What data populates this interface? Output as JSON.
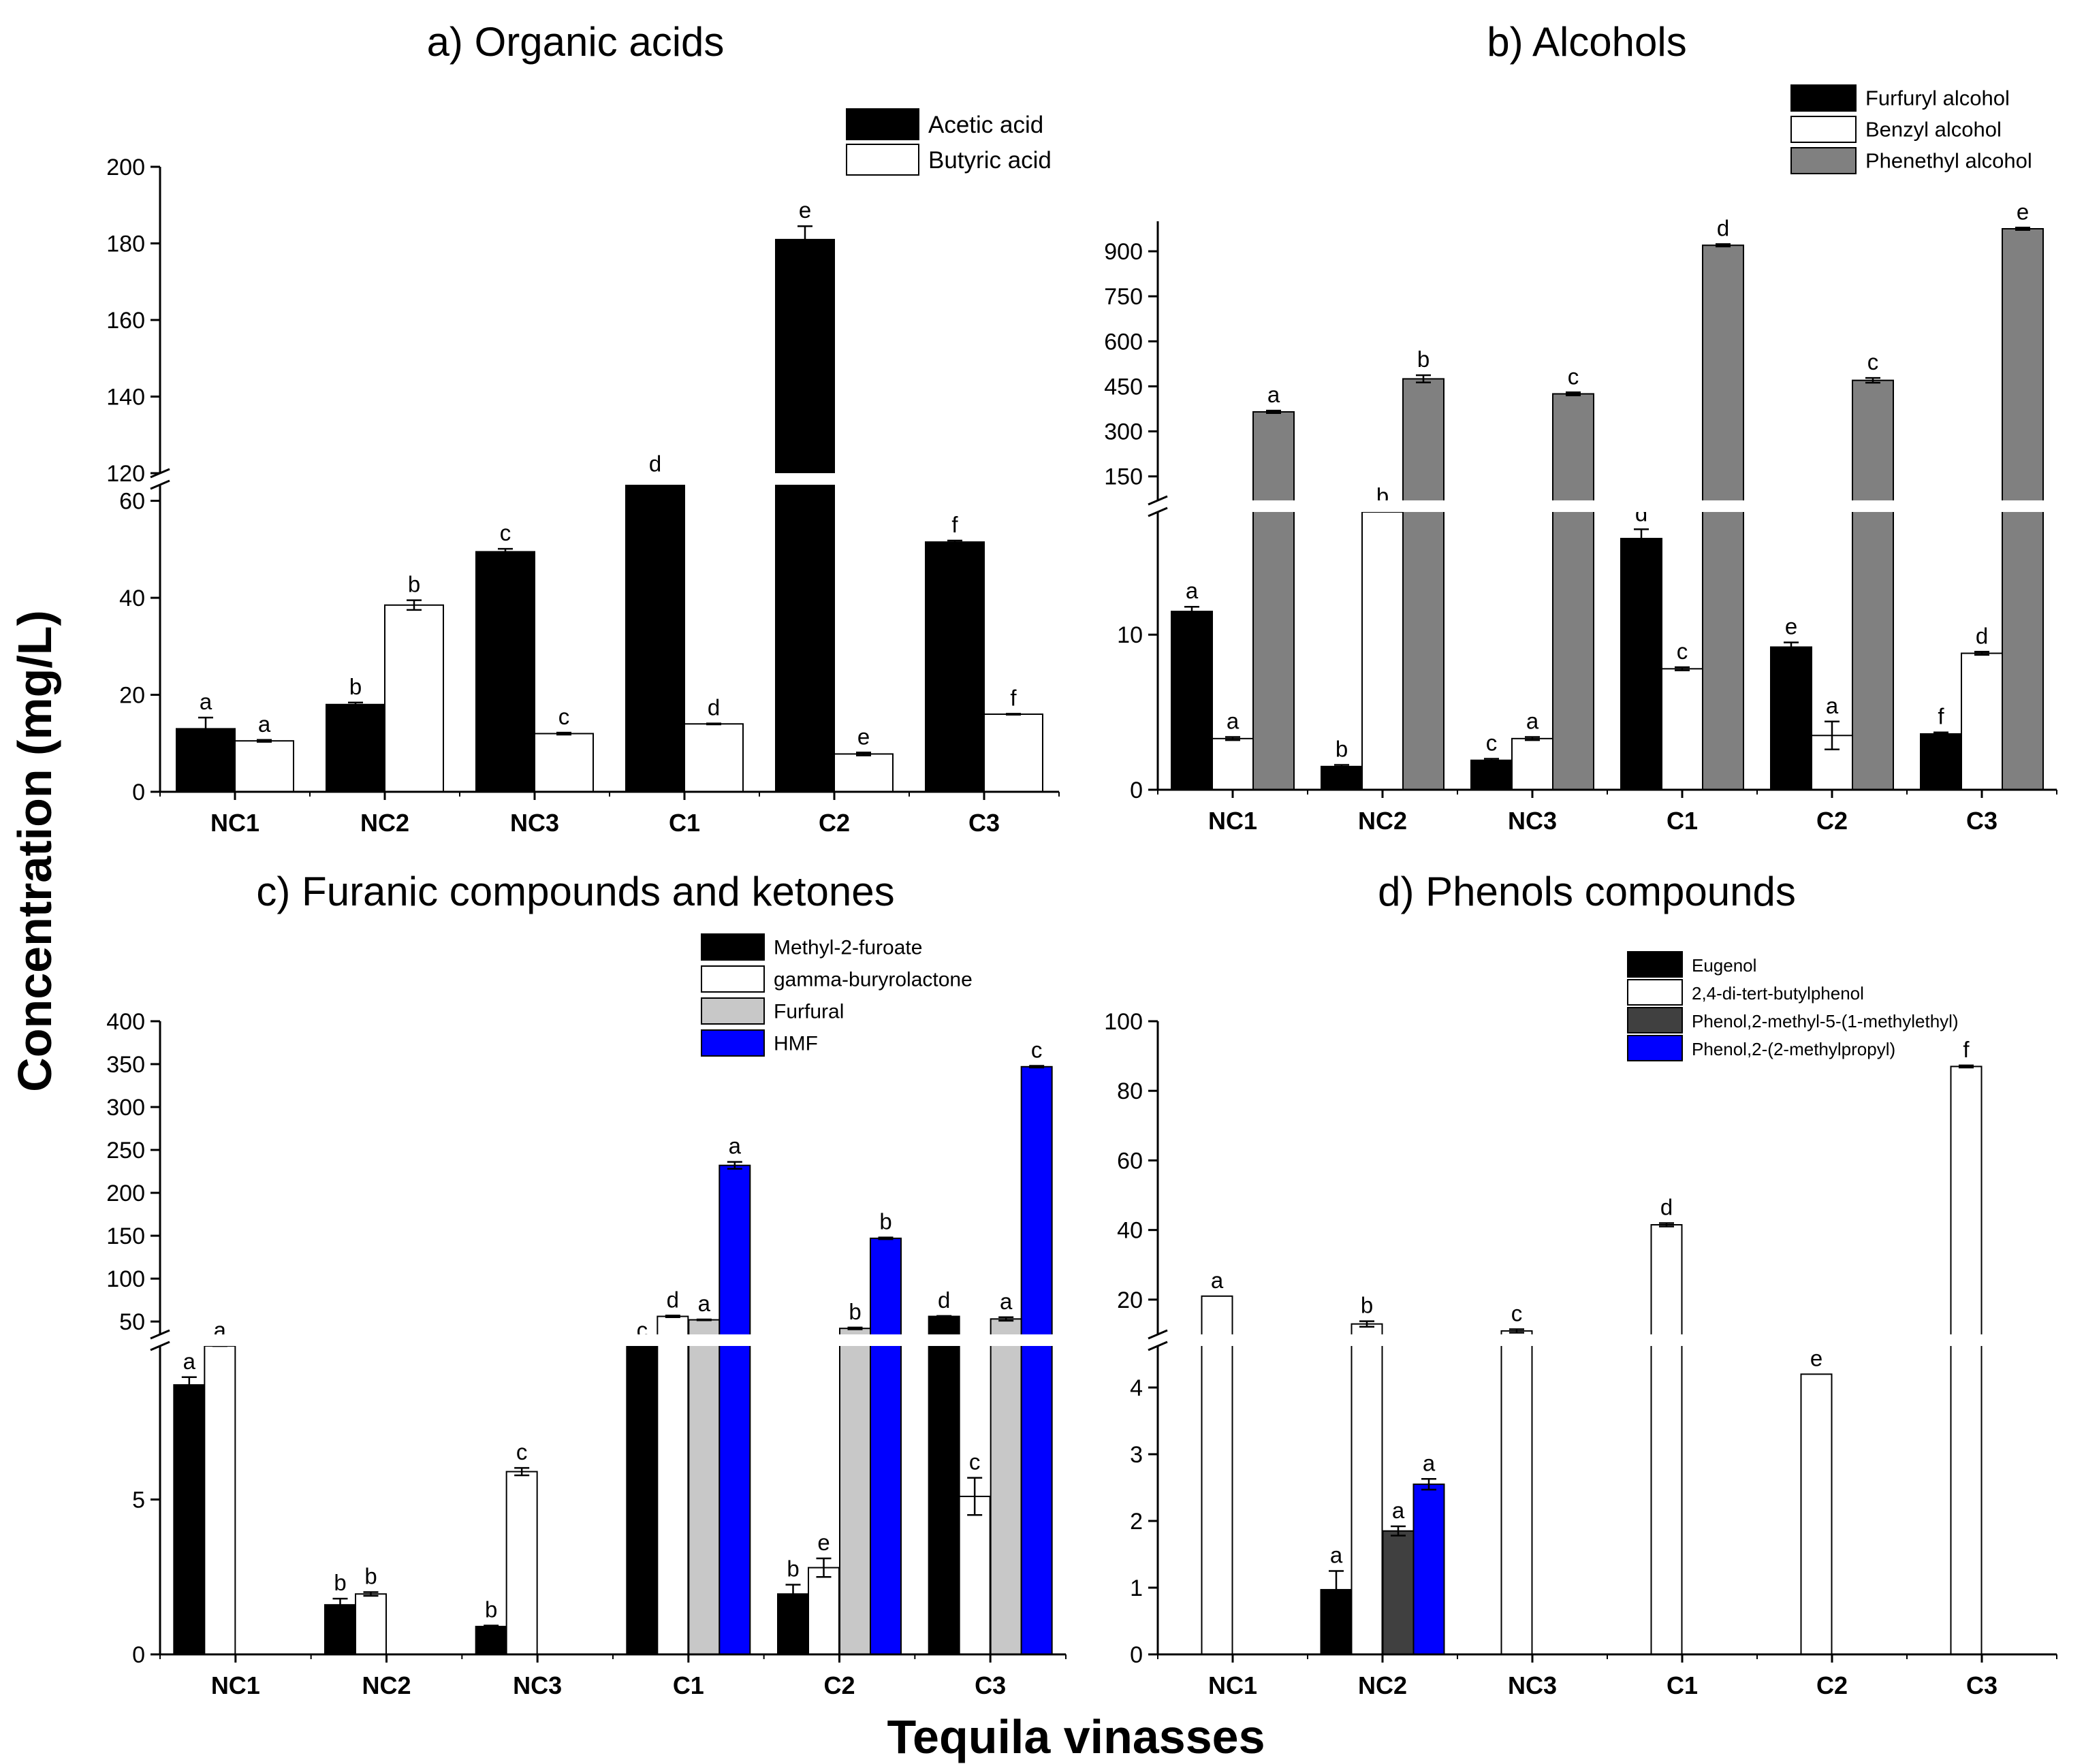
{
  "figure": {
    "ylabel": "Concentration (mg/L)",
    "xlabel": "Tequila vinasses"
  },
  "chart_data": [
    {
      "type": "bar",
      "title": "a) Organic acids",
      "categories": [
        "NC1",
        "NC2",
        "NC3",
        "C1",
        "C2",
        "C3"
      ],
      "series": [
        {
          "name": "Acetic acid",
          "color": "#000000",
          "values": [
            13,
            18,
            49.5,
            63.5,
            181,
            51.5
          ],
          "errors": [
            2.3,
            0.4,
            0.6,
            0.9,
            3.5,
            0.3
          ],
          "letters": [
            "a",
            "b",
            "c",
            "d",
            "e",
            "f"
          ]
        },
        {
          "name": "Butyric acid",
          "color": "#ffffff",
          "values": [
            10.5,
            38.5,
            12,
            14,
            7.8,
            16
          ],
          "errors": [
            0.2,
            1,
            0.2,
            0.1,
            0.3,
            0.1
          ],
          "letters": [
            "a",
            "b",
            "c",
            "d",
            "e",
            "f"
          ]
        }
      ],
      "axis_break": [
        65,
        120
      ],
      "lower_ticks": [
        0,
        20,
        40,
        60
      ],
      "upper_ticks": [
        120,
        140,
        160,
        180,
        200
      ],
      "ylim": [
        0,
        200
      ]
    },
    {
      "type": "bar",
      "title": "b) Alcohols",
      "categories": [
        "NC1",
        "NC2",
        "NC3",
        "C1",
        "C2",
        "C3"
      ],
      "series": [
        {
          "name": "Furfuryl alcohol",
          "color": "#000000",
          "values": [
            11.5,
            1.5,
            1.9,
            16.2,
            9.2,
            3.6
          ],
          "errors": [
            0.3,
            0.1,
            0.1,
            0.6,
            0.3,
            0.1
          ],
          "letters": [
            "a",
            "b",
            "c",
            "d",
            "e",
            "f"
          ]
        },
        {
          "name": "Benzyl alcohol",
          "color": "#ffffff",
          "values": [
            3.3,
            48,
            3.3,
            7.8,
            3.5,
            8.8
          ],
          "errors": [
            0.1,
            0,
            0.1,
            0.1,
            0.9,
            0.1
          ],
          "letters": [
            "a",
            "b",
            "a",
            "c",
            "a",
            "d"
          ]
        },
        {
          "name": "Phenethyl alcohol",
          "color": "#808080",
          "values": [
            365,
            475,
            425,
            920,
            470,
            975
          ],
          "errors": [
            4,
            12,
            5,
            4,
            8,
            4
          ],
          "letters": [
            "a",
            "b",
            "c",
            "d",
            "c",
            "e"
          ]
        }
      ],
      "axis_break": [
        18,
        70
      ],
      "lower_ticks": [
        0,
        10
      ],
      "upper_ticks": [
        150,
        300,
        450,
        600,
        750,
        900
      ],
      "ylim": [
        0,
        1000
      ]
    },
    {
      "type": "bar",
      "title": "c) Furanic compounds and ketones",
      "categories": [
        "NC1",
        "NC2",
        "NC3",
        "C1",
        "C2",
        "C3"
      ],
      "series": [
        {
          "name": "Methyl-2-furoate",
          "color": "#000000",
          "values": [
            8.7,
            1.6,
            0.9,
            27,
            1.95,
            56
          ],
          "errors": [
            0.25,
            0.2,
            0.03,
            0.8,
            0.3,
            0.5
          ],
          "letters": [
            "a",
            "b",
            "b",
            "c",
            "b",
            "d"
          ]
        },
        {
          "name": "gamma-buryrolactone",
          "color": "#ffffff",
          "values": [
            22,
            1.95,
            5.9,
            56,
            2.8,
            5.1
          ],
          "errors": [
            0.3,
            0.06,
            0.12,
            1,
            0.3,
            0.6
          ],
          "letters": [
            "a",
            "b",
            "c",
            "d",
            "e",
            "c"
          ]
        },
        {
          "name": "Furfural",
          "color": "#c8c8c8",
          "values": [
            null,
            null,
            null,
            52,
            42,
            53
          ],
          "errors": [
            0,
            0,
            0,
            0.5,
            1,
            2
          ],
          "letters": [
            "",
            "",
            "",
            "a",
            "b",
            "a"
          ]
        },
        {
          "name": "HMF",
          "color": "#0000ff",
          "values": [
            null,
            null,
            null,
            232,
            147,
            347
          ],
          "errors": [
            0,
            0,
            0,
            4,
            1,
            1
          ],
          "letters": [
            "",
            "",
            "",
            "a",
            "b",
            "c"
          ]
        }
      ],
      "axis_break": [
        10,
        35
      ],
      "lower_ticks": [
        0,
        5
      ],
      "upper_ticks": [
        50,
        100,
        150,
        200,
        250,
        300,
        350,
        400
      ],
      "ylim": [
        0,
        400
      ]
    },
    {
      "type": "bar",
      "title": "d) Phenols compounds",
      "categories": [
        "NC1",
        "NC2",
        "NC3",
        "C1",
        "C2",
        "C3"
      ],
      "series": [
        {
          "name": "Eugenol",
          "color": "#000000",
          "values": [
            null,
            0.97,
            null,
            null,
            null,
            null
          ],
          "errors": [
            0,
            0.28,
            0,
            0,
            0,
            0
          ],
          "letters": [
            "",
            "a",
            "",
            "",
            "",
            ""
          ]
        },
        {
          "name": "2,4-di-tert-butylphenol",
          "color": "#ffffff",
          "values": [
            21,
            13,
            11,
            41.5,
            4.2,
            87
          ],
          "errors": [
            0,
            0.8,
            0.5,
            0.5,
            0,
            0.3
          ],
          "letters": [
            "a",
            "b",
            "c",
            "d",
            "e",
            "f"
          ]
        },
        {
          "name": "Phenol,2-methyl-5-(1-methylethyl)",
          "color": "#404040",
          "values": [
            null,
            1.85,
            null,
            null,
            null,
            null
          ],
          "errors": [
            0,
            0.07,
            0,
            0,
            0,
            0
          ],
          "letters": [
            "",
            "a",
            "",
            "",
            "",
            ""
          ]
        },
        {
          "name": "Phenol,2-(2-methylpropyl)",
          "color": "#0000ff",
          "values": [
            null,
            2.55,
            null,
            null,
            null,
            null
          ],
          "errors": [
            0,
            0.08,
            0,
            0,
            0,
            0
          ],
          "letters": [
            "",
            "a",
            "",
            "",
            "",
            ""
          ]
        }
      ],
      "axis_break": [
        5,
        10
      ],
      "lower_ticks": [
        0,
        1,
        2,
        3,
        4
      ],
      "upper_ticks": [
        20,
        40,
        60,
        80,
        100
      ],
      "ylim": [
        0,
        100
      ]
    }
  ]
}
